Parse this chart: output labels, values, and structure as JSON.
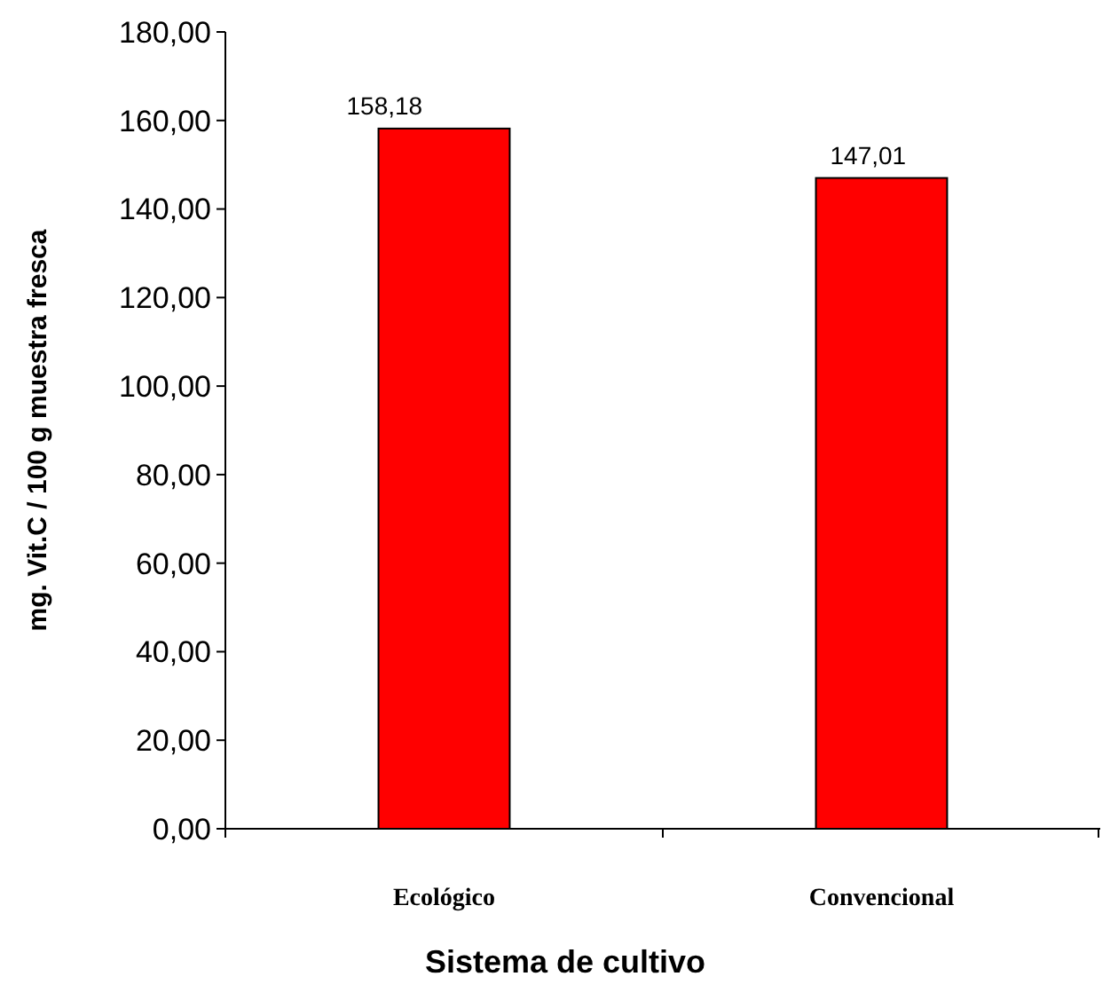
{
  "chart_data": {
    "type": "bar",
    "xlabel": "Sistema de cultivo",
    "ylabel": "mg. Vit.C / 100 g muestra fresca",
    "categories": [
      "Ecológico",
      "Convencional"
    ],
    "values": [
      158.18,
      147.01
    ],
    "color": "#ff0000",
    "value_labels": [
      "158,18",
      "147,01"
    ],
    "ylim": [
      0,
      180
    ],
    "yticks": [
      {
        "value": 0,
        "label": "0,00"
      },
      {
        "value": 20,
        "label": "20,00"
      },
      {
        "value": 40,
        "label": "40,00"
      },
      {
        "value": 60,
        "label": "60,00"
      },
      {
        "value": 80,
        "label": "80,00"
      },
      {
        "value": 100,
        "label": "100,00"
      },
      {
        "value": 120,
        "label": "120,00"
      },
      {
        "value": 140,
        "label": "140,00"
      },
      {
        "value": 160,
        "label": "160,00"
      },
      {
        "value": 180,
        "label": "180,00"
      }
    ],
    "grid": false
  }
}
